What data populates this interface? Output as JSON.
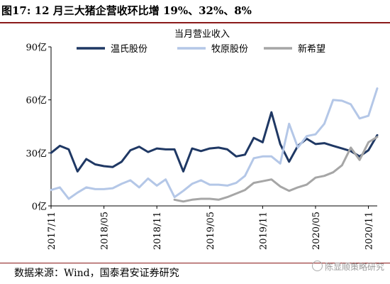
{
  "figure": {
    "label": "图17: 12 月三大猪企营收环比增 19%、32%、8%",
    "source": "数据来源：Wind，国泰君安证券研究",
    "watermark": "陈显顺策略研究"
  },
  "colors": {
    "title_rule": "#8b1a1a",
    "wens": "#1f3864",
    "muyuan": "#b4c7e7",
    "newhope": "#a6a6a6"
  },
  "chart_data": {
    "type": "line",
    "title": "当月营业收入",
    "ylim": [
      0,
      90
    ],
    "yticks": [
      "0亿",
      "30亿",
      "60亿",
      "90亿"
    ],
    "ytick_values": [
      0,
      30,
      60,
      90
    ],
    "xtick_labels": [
      "2017/11",
      "2018/05",
      "2018/11",
      "2019/05",
      "2019/11",
      "2020/05",
      "2020/11"
    ],
    "xtick_index": [
      0,
      6,
      12,
      18,
      24,
      30,
      36
    ],
    "x": [
      "2017/11",
      "2017/12",
      "2018/01",
      "2018/02",
      "2018/03",
      "2018/04",
      "2018/05",
      "2018/06",
      "2018/07",
      "2018/08",
      "2018/09",
      "2018/10",
      "2018/11",
      "2018/12",
      "2019/01",
      "2019/02",
      "2019/03",
      "2019/04",
      "2019/05",
      "2019/06",
      "2019/07",
      "2019/08",
      "2019/09",
      "2019/10",
      "2019/11",
      "2019/12",
      "2020/01",
      "2020/02",
      "2020/03",
      "2020/04",
      "2020/05",
      "2020/06",
      "2020/07",
      "2020/08",
      "2020/09",
      "2020/10",
      "2020/11",
      "2020/12"
    ],
    "legend_position": "top",
    "grid": false,
    "series": [
      {
        "name": "温氏股份",
        "color": "#1f3864",
        "width": 3,
        "values": [
          null,
          null,
          null,
          null,
          null,
          null,
          null,
          null,
          null,
          null,
          null,
          null,
          null,
          null,
          null,
          null,
          null,
          null,
          null,
          null,
          null,
          null,
          null,
          null,
          null,
          null,
          null,
          null,
          null,
          null,
          null,
          null,
          null,
          null,
          null,
          null,
          null,
          null
        ]
      },
      {
        "name": "牧原股份",
        "color": "#b4c7e7",
        "width": 3,
        "values": [
          null,
          null,
          null,
          null,
          null,
          null,
          null,
          null,
          null,
          null,
          null,
          null,
          null,
          null,
          null,
          null,
          null,
          null,
          null,
          null,
          null,
          null,
          null,
          null,
          null,
          null,
          null,
          null,
          null,
          null,
          null,
          null,
          null,
          null,
          null,
          null,
          null,
          null
        ]
      },
      {
        "name": "新希望",
        "color": "#a6a6a6",
        "width": 3,
        "values": [
          null,
          null,
          null,
          null,
          null,
          null,
          null,
          null,
          null,
          null,
          null,
          null,
          null,
          null,
          null,
          null,
          null,
          null,
          null,
          null,
          null,
          null,
          null,
          null,
          null,
          null,
          null,
          null,
          null,
          null,
          null,
          null,
          null,
          null,
          null,
          null,
          null,
          null
        ]
      }
    ]
  }
}
